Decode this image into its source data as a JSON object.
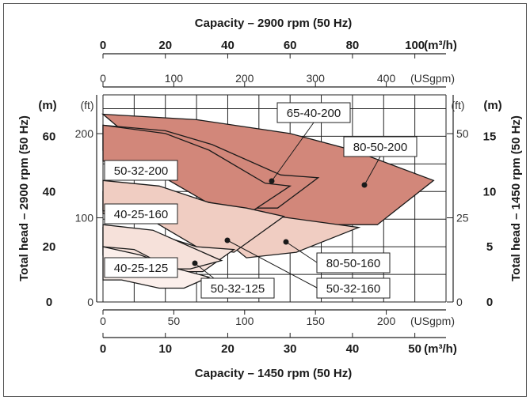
{
  "chart_data": {
    "type": "area",
    "top_axis_title": "Capacity – 2900 rpm (50 Hz)",
    "bottom_axis_title": "Capacity – 1450 rpm (50 Hz)",
    "left_axis_title": "Total head – 2900 rpm (50 Hz)",
    "right_axis_title": "Total head – 1450 rpm (50 Hz)",
    "axes": {
      "top_m3h": {
        "unit": "(m³/h)",
        "ticks": [
          "0",
          "20",
          "40",
          "60",
          "80",
          "100"
        ],
        "range": [
          0,
          110
        ]
      },
      "top_usgpm": {
        "unit": "(USgpm)",
        "ticks": [
          "0",
          "100",
          "200",
          "300",
          "400"
        ],
        "range": [
          0,
          484
        ]
      },
      "left_m": {
        "unit": "(m)",
        "ticks": [
          "0",
          "20",
          "40",
          "60"
        ],
        "range": [
          0,
          75
        ]
      },
      "left_ft": {
        "unit": "(ft)",
        "ticks": [
          "0",
          "100",
          "200"
        ],
        "range": [
          0,
          246
        ]
      },
      "right_ft": {
        "unit": "(ft)",
        "ticks": [
          "0",
          "25",
          "50"
        ],
        "range": [
          0,
          61.5
        ]
      },
      "right_m": {
        "unit": "(m)",
        "ticks": [
          "0",
          "5",
          "10",
          "15"
        ],
        "range": [
          0,
          18.75
        ]
      },
      "bottom_usgpm": {
        "unit": "(USgpm)",
        "ticks": [
          "0",
          "50",
          "100",
          "150",
          "200"
        ],
        "range": [
          0,
          242
        ]
      },
      "bottom_m3h": {
        "unit": "(m³/h)",
        "ticks": [
          "0",
          "10",
          "20",
          "30",
          "40",
          "50"
        ],
        "range": [
          0,
          55
        ]
      }
    },
    "grid": true,
    "series": [
      {
        "name": "80-50-200",
        "color": "#d2877a",
        "points": [
          [
            0,
            68
          ],
          [
            30,
            66
          ],
          [
            60,
            61
          ],
          [
            80,
            55
          ],
          [
            106,
            44
          ],
          [
            88,
            28
          ],
          [
            42,
            28
          ]
        ]
      },
      {
        "name": "65-40-200",
        "color": "#d2877a",
        "points": [
          [
            0,
            64
          ],
          [
            20,
            62
          ],
          [
            35,
            57
          ],
          [
            57,
            46
          ],
          [
            69,
            45
          ],
          [
            56,
            34
          ],
          [
            46,
            34
          ],
          [
            15,
            54
          ],
          [
            0,
            55
          ]
        ]
      },
      {
        "name": "50-32-200",
        "color": "#d2877a",
        "points": [
          [
            0,
            64
          ],
          [
            20,
            61
          ],
          [
            34,
            55
          ],
          [
            52,
            43
          ],
          [
            60,
            42
          ],
          [
            48,
            33
          ],
          [
            38,
            33
          ],
          [
            12,
            50
          ],
          [
            0,
            51
          ]
        ]
      },
      {
        "name": "80-50-160",
        "color": "#f0cdc2",
        "points": [
          [
            0,
            40
          ],
          [
            30,
            37
          ],
          [
            56,
            31
          ],
          [
            82,
            27
          ],
          [
            62,
            18
          ],
          [
            46,
            16
          ],
          [
            34,
            27
          ],
          [
            0,
            32
          ]
        ]
      },
      {
        "name": "50-32-160",
        "color": "#f0cdc2",
        "points": [
          [
            0,
            44
          ],
          [
            18,
            42
          ],
          [
            34,
            36
          ],
          [
            46,
            34
          ],
          [
            58,
            31
          ],
          [
            42,
            18
          ],
          [
            30,
            20
          ],
          [
            12,
            32
          ],
          [
            0,
            33
          ]
        ]
      },
      {
        "name": "50-32-125",
        "color": "#f6e1da",
        "points": [
          [
            0,
            27
          ],
          [
            16,
            25
          ],
          [
            30,
            20
          ],
          [
            42,
            19
          ],
          [
            32,
            11
          ],
          [
            25,
            11
          ],
          [
            14,
            16
          ],
          [
            0,
            17
          ]
        ]
      },
      {
        "name": "40-25-160",
        "color": "#f6e1da",
        "points": [
          [
            0,
            28
          ],
          [
            16,
            26
          ],
          [
            28,
            20
          ],
          [
            38,
            15
          ],
          [
            28,
            12
          ],
          [
            22,
            12
          ],
          [
            10,
            19
          ],
          [
            0,
            20
          ]
        ]
      },
      {
        "name": "40-25-125",
        "color": "#fbefeb",
        "points": [
          [
            0,
            20
          ],
          [
            12,
            17
          ],
          [
            24,
            12
          ],
          [
            34,
            9
          ],
          [
            26,
            5
          ],
          [
            18,
            5
          ],
          [
            6,
            8
          ],
          [
            0,
            8
          ]
        ]
      }
    ],
    "labels": [
      {
        "text": "65-40-200"
      },
      {
        "text": "80-50-200"
      },
      {
        "text": "50-32-200"
      },
      {
        "text": "40-25-160"
      },
      {
        "text": "80-50-160"
      },
      {
        "text": "50-32-125"
      },
      {
        "text": "50-32-160"
      },
      {
        "text": "40-25-125"
      }
    ]
  }
}
